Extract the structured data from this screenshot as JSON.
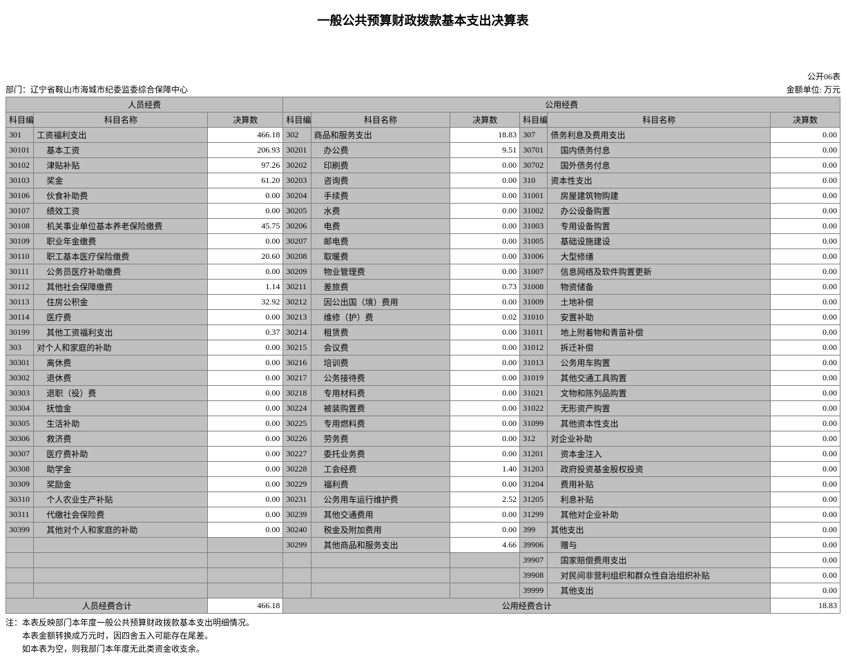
{
  "title": "一般公共预算财政拨款基本支出决算表",
  "form_no": "公开06表",
  "dept_label": "部门：辽宁省鞍山市海城市纪委监委综合保障中心",
  "unit_label": "金额单位: 万元",
  "headers": {
    "group1": "人员经费",
    "group2": "公用经费",
    "code": "科目编码",
    "name": "科目名称",
    "amount": "决算数"
  },
  "totals": {
    "left_label": "人员经费合计",
    "left_amount": "466.18",
    "right_label": "公用经费合计",
    "right_amount": "18.83"
  },
  "footer": {
    "l1": "注：本表反映部门本年度一般公共预算财政拨款基本支出明细情况。",
    "l2": "本表金额转换成万元时，因四舍五入可能存在尾差。",
    "l3": "如本表为空，则我部门本年度无此类资金收支余。"
  },
  "rows": [
    {
      "c1": "301",
      "n1": "工资福利支出",
      "i1": 0,
      "a1": "466.18",
      "c2": "302",
      "n2": "商品和服务支出",
      "i2": 0,
      "a2": "18.83",
      "c3": "307",
      "n3": "债务利息及费用支出",
      "i3": 0,
      "a3": "0.00"
    },
    {
      "c1": "30101",
      "n1": "基本工资",
      "i1": 1,
      "a1": "206.93",
      "c2": "30201",
      "n2": "办公费",
      "i2": 1,
      "a2": "9.51",
      "c3": "30701",
      "n3": "国内债务付息",
      "i3": 1,
      "a3": "0.00"
    },
    {
      "c1": "30102",
      "n1": "津贴补贴",
      "i1": 1,
      "a1": "97.26",
      "c2": "30202",
      "n2": "印刷费",
      "i2": 1,
      "a2": "0.00",
      "c3": "30702",
      "n3": "国外债务付息",
      "i3": 1,
      "a3": "0.00"
    },
    {
      "c1": "30103",
      "n1": "奖金",
      "i1": 1,
      "a1": "61.20",
      "c2": "30203",
      "n2": "咨询费",
      "i2": 1,
      "a2": "0.00",
      "c3": "310",
      "n3": "资本性支出",
      "i3": 0,
      "a3": "0.00"
    },
    {
      "c1": "30106",
      "n1": "伙食补助费",
      "i1": 1,
      "a1": "0.00",
      "c2": "30204",
      "n2": "手续费",
      "i2": 1,
      "a2": "0.00",
      "c3": "31001",
      "n3": "房屋建筑物购建",
      "i3": 1,
      "a3": "0.00"
    },
    {
      "c1": "30107",
      "n1": "绩效工资",
      "i1": 1,
      "a1": "0.00",
      "c2": "30205",
      "n2": "水费",
      "i2": 1,
      "a2": "0.00",
      "c3": "31002",
      "n3": "办公设备购置",
      "i3": 1,
      "a3": "0.00"
    },
    {
      "c1": "30108",
      "n1": "机关事业单位基本养老保险缴费",
      "i1": 1,
      "a1": "45.75",
      "c2": "30206",
      "n2": "电费",
      "i2": 1,
      "a2": "0.00",
      "c3": "31003",
      "n3": "专用设备购置",
      "i3": 1,
      "a3": "0.00"
    },
    {
      "c1": "30109",
      "n1": "职业年金缴费",
      "i1": 1,
      "a1": "0.00",
      "c2": "30207",
      "n2": "邮电费",
      "i2": 1,
      "a2": "0.00",
      "c3": "31005",
      "n3": "基础设施建设",
      "i3": 1,
      "a3": "0.00"
    },
    {
      "c1": "30110",
      "n1": "职工基本医疗保险缴费",
      "i1": 1,
      "a1": "20.60",
      "c2": "30208",
      "n2": "取暖费",
      "i2": 1,
      "a2": "0.00",
      "c3": "31006",
      "n3": "大型修缮",
      "i3": 1,
      "a3": "0.00"
    },
    {
      "c1": "30111",
      "n1": "公务员医疗补助缴费",
      "i1": 1,
      "a1": "0.00",
      "c2": "30209",
      "n2": "物业管理费",
      "i2": 1,
      "a2": "0.00",
      "c3": "31007",
      "n3": "信息网络及软件购置更新",
      "i3": 1,
      "a3": "0.00"
    },
    {
      "c1": "30112",
      "n1": "其他社会保障缴费",
      "i1": 1,
      "a1": "1.14",
      "c2": "30211",
      "n2": "差旅费",
      "i2": 1,
      "a2": "0.73",
      "c3": "31008",
      "n3": "物资储备",
      "i3": 1,
      "a3": "0.00"
    },
    {
      "c1": "30113",
      "n1": "住房公积金",
      "i1": 1,
      "a1": "32.92",
      "c2": "30212",
      "n2": "因公出国（境）费用",
      "i2": 1,
      "a2": "0.00",
      "c3": "31009",
      "n3": "土地补偿",
      "i3": 1,
      "a3": "0.00"
    },
    {
      "c1": "30114",
      "n1": "医疗费",
      "i1": 1,
      "a1": "0.00",
      "c2": "30213",
      "n2": "维修（护）费",
      "i2": 1,
      "a2": "0.02",
      "c3": "31010",
      "n3": "安置补助",
      "i3": 1,
      "a3": "0.00"
    },
    {
      "c1": "30199",
      "n1": "其他工资福利支出",
      "i1": 1,
      "a1": "0.37",
      "c2": "30214",
      "n2": "租赁费",
      "i2": 1,
      "a2": "0.00",
      "c3": "31011",
      "n3": "地上附着物和青苗补偿",
      "i3": 1,
      "a3": "0.00"
    },
    {
      "c1": "303",
      "n1": "对个人和家庭的补助",
      "i1": 0,
      "a1": "0.00",
      "c2": "30215",
      "n2": "会议费",
      "i2": 1,
      "a2": "0.00",
      "c3": "31012",
      "n3": "拆迁补偿",
      "i3": 1,
      "a3": "0.00"
    },
    {
      "c1": "30301",
      "n1": "离休费",
      "i1": 1,
      "a1": "0.00",
      "c2": "30216",
      "n2": "培训费",
      "i2": 1,
      "a2": "0.00",
      "c3": "31013",
      "n3": "公务用车购置",
      "i3": 1,
      "a3": "0.00"
    },
    {
      "c1": "30302",
      "n1": "退休费",
      "i1": 1,
      "a1": "0.00",
      "c2": "30217",
      "n2": "公务接待费",
      "i2": 1,
      "a2": "0.00",
      "c3": "31019",
      "n3": "其他交通工具购置",
      "i3": 1,
      "a3": "0.00"
    },
    {
      "c1": "30303",
      "n1": "退职（役）费",
      "i1": 1,
      "a1": "0.00",
      "c2": "30218",
      "n2": "专用材料费",
      "i2": 1,
      "a2": "0.00",
      "c3": "31021",
      "n3": "文物和陈列品购置",
      "i3": 1,
      "a3": "0.00"
    },
    {
      "c1": "30304",
      "n1": "抚恤金",
      "i1": 1,
      "a1": "0.00",
      "c2": "30224",
      "n2": "被装购置费",
      "i2": 1,
      "a2": "0.00",
      "c3": "31022",
      "n3": "无形资产购置",
      "i3": 1,
      "a3": "0.00"
    },
    {
      "c1": "30305",
      "n1": "生活补助",
      "i1": 1,
      "a1": "0.00",
      "c2": "30225",
      "n2": "专用燃料费",
      "i2": 1,
      "a2": "0.00",
      "c3": "31099",
      "n3": "其他资本性支出",
      "i3": 1,
      "a3": "0.00"
    },
    {
      "c1": "30306",
      "n1": "救济费",
      "i1": 1,
      "a1": "0.00",
      "c2": "30226",
      "n2": "劳务费",
      "i2": 1,
      "a2": "0.00",
      "c3": "312",
      "n3": "对企业补助",
      "i3": 0,
      "a3": "0.00"
    },
    {
      "c1": "30307",
      "n1": "医疗费补助",
      "i1": 1,
      "a1": "0.00",
      "c2": "30227",
      "n2": "委托业务费",
      "i2": 1,
      "a2": "0.00",
      "c3": "31201",
      "n3": "资本金注入",
      "i3": 1,
      "a3": "0.00"
    },
    {
      "c1": "30308",
      "n1": "助学金",
      "i1": 1,
      "a1": "0.00",
      "c2": "30228",
      "n2": "工会经费",
      "i2": 1,
      "a2": "1.40",
      "c3": "31203",
      "n3": "政府投资基金股权投资",
      "i3": 1,
      "a3": "0.00"
    },
    {
      "c1": "30309",
      "n1": "奖励金",
      "i1": 1,
      "a1": "0.00",
      "c2": "30229",
      "n2": "福利费",
      "i2": 1,
      "a2": "0.00",
      "c3": "31204",
      "n3": "费用补贴",
      "i3": 1,
      "a3": "0.00"
    },
    {
      "c1": "30310",
      "n1": "个人农业生产补贴",
      "i1": 1,
      "a1": "0.00",
      "c2": "30231",
      "n2": "公务用车运行维护费",
      "i2": 1,
      "a2": "2.52",
      "c3": "31205",
      "n3": "利息补贴",
      "i3": 1,
      "a3": "0.00"
    },
    {
      "c1": "30311",
      "n1": "代缴社会保险费",
      "i1": 1,
      "a1": "0.00",
      "c2": "30239",
      "n2": "其他交通费用",
      "i2": 1,
      "a2": "0.00",
      "c3": "31299",
      "n3": "其他对企业补助",
      "i3": 1,
      "a3": "0.00"
    },
    {
      "c1": "30399",
      "n1": "其他对个人和家庭的补助",
      "i1": 1,
      "a1": "0.00",
      "c2": "30240",
      "n2": "税金及附加费用",
      "i2": 1,
      "a2": "0.00",
      "c3": "399",
      "n3": "其他支出",
      "i3": 0,
      "a3": "0.00"
    },
    {
      "c1": "",
      "n1": "",
      "i1": 0,
      "a1": "",
      "c2": "30299",
      "n2": "其他商品和服务支出",
      "i2": 1,
      "a2": "4.66",
      "c3": "39906",
      "n3": "赠与",
      "i3": 1,
      "a3": "0.00"
    },
    {
      "c1": "",
      "n1": "",
      "i1": 0,
      "a1": "",
      "c2": "",
      "n2": "",
      "i2": 0,
      "a2": "",
      "c3": "39907",
      "n3": "国家赔偿费用支出",
      "i3": 1,
      "a3": "0.00"
    },
    {
      "c1": "",
      "n1": "",
      "i1": 0,
      "a1": "",
      "c2": "",
      "n2": "",
      "i2": 0,
      "a2": "",
      "c3": "39908",
      "n3": "对民间非营利组织和群众性自治组织补贴",
      "i3": 1,
      "a3": "0.00"
    },
    {
      "c1": "",
      "n1": "",
      "i1": 0,
      "a1": "",
      "c2": "",
      "n2": "",
      "i2": 0,
      "a2": "",
      "c3": "39999",
      "n3": "其他支出",
      "i3": 1,
      "a3": "0.00"
    }
  ]
}
